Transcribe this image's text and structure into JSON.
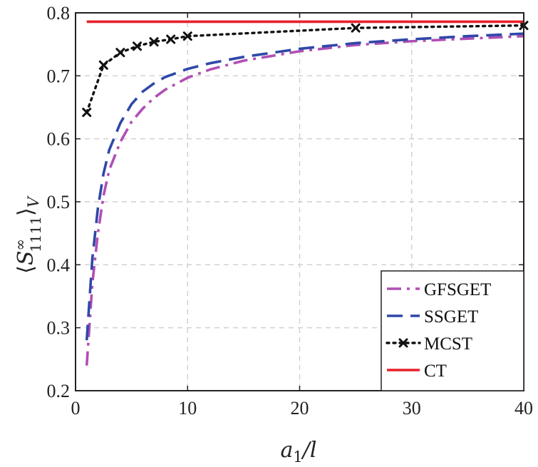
{
  "chart_data": {
    "type": "line",
    "title": "",
    "xlabel": "a₁/l",
    "ylabel": "⟨S∞₁₁₁₁⟩V",
    "xlabel_parts": {
      "base": "a",
      "sub": "1",
      "rest": "/l"
    },
    "ylabel_parts": {
      "open": "⟨",
      "base": "S",
      "sup": "∞",
      "sub": "1111",
      "close": "⟩",
      "tail": "V"
    },
    "xlim": [
      0,
      40
    ],
    "ylim": [
      0.2,
      0.8
    ],
    "xticks": [
      0,
      10,
      20,
      30,
      40
    ],
    "yticks": [
      0.2,
      0.3,
      0.4,
      0.5,
      0.6,
      0.7,
      0.8
    ],
    "xtick_labels": [
      "0",
      "10",
      "20",
      "30",
      "40"
    ],
    "ytick_labels": [
      "0.2",
      "0.3",
      "0.4",
      "0.5",
      "0.6",
      "0.7",
      "0.8"
    ],
    "grid": true,
    "legend_position": "bottom-right",
    "series": [
      {
        "name": "GFSGET",
        "color": "#b04fb5",
        "style": "dash-dot",
        "marker": "none",
        "x": [
          1,
          1.5,
          2,
          2.5,
          3,
          4,
          5,
          6,
          7,
          8,
          10,
          12,
          15,
          20,
          25,
          30,
          35,
          40
        ],
        "y": [
          0.24,
          0.37,
          0.45,
          0.51,
          0.55,
          0.595,
          0.627,
          0.648,
          0.665,
          0.678,
          0.697,
          0.71,
          0.724,
          0.739,
          0.749,
          0.755,
          0.759,
          0.763
        ]
      },
      {
        "name": "SSGET",
        "color": "#2f48a8",
        "style": "dashed",
        "marker": "none",
        "x": [
          1,
          1.5,
          2,
          2.5,
          3,
          4,
          5,
          6,
          7,
          8,
          10,
          12,
          15,
          20,
          25,
          30,
          35,
          40
        ],
        "y": [
          0.28,
          0.41,
          0.49,
          0.545,
          0.582,
          0.625,
          0.655,
          0.675,
          0.688,
          0.698,
          0.711,
          0.72,
          0.73,
          0.743,
          0.752,
          0.758,
          0.763,
          0.767
        ]
      },
      {
        "name": "MCST",
        "color": "#111111",
        "style": "dotted",
        "marker": "x",
        "x": [
          1,
          2.5,
          4,
          5.5,
          7,
          8.5,
          10,
          25,
          40
        ],
        "y": [
          0.642,
          0.717,
          0.737,
          0.747,
          0.754,
          0.758,
          0.763,
          0.776,
          0.78
        ]
      },
      {
        "name": "CT",
        "color": "#e8202a",
        "style": "solid",
        "marker": "none",
        "x": [
          1,
          40
        ],
        "y": [
          0.786,
          0.786
        ]
      }
    ]
  }
}
